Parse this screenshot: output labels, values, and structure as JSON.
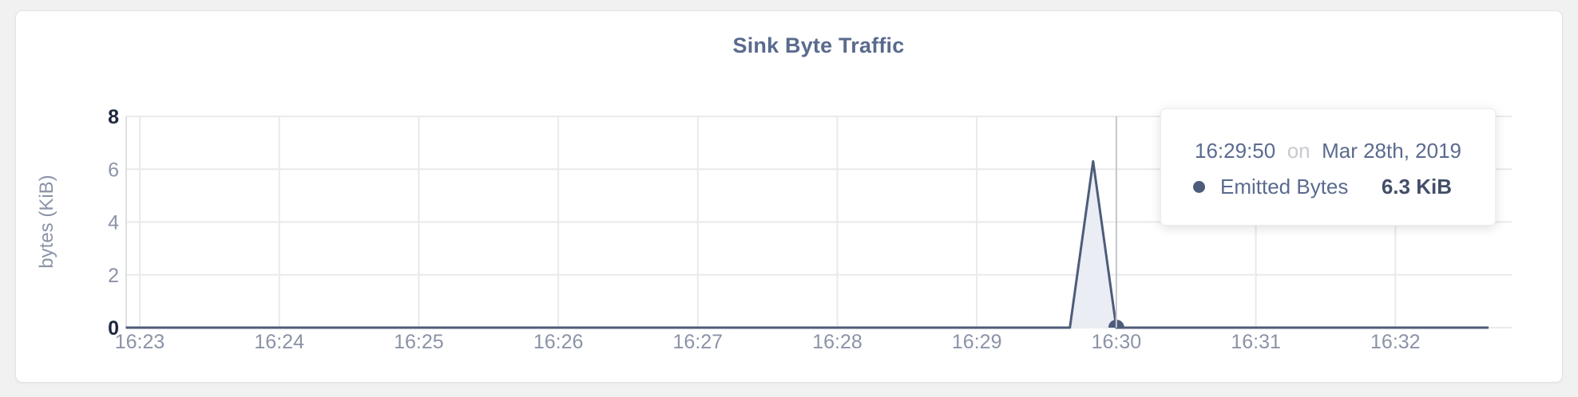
{
  "page": {
    "background": "#f1f1f2"
  },
  "card": {
    "background": "#ffffff",
    "border_color": "#e3e4e6"
  },
  "chart_data": {
    "type": "area",
    "title": "Sink Byte Traffic",
    "xlabel": "",
    "ylabel": "bytes (KiB)",
    "x_tick_labels": [
      "16:23",
      "16:24",
      "16:25",
      "16:26",
      "16:27",
      "16:28",
      "16:29",
      "16:30",
      "16:31",
      "16:32"
    ],
    "y_ticks": [
      0,
      2,
      4,
      6,
      8
    ],
    "y_tick_labels": [
      "0",
      "2",
      "4",
      "6",
      "8"
    ],
    "ylim": [
      0,
      8
    ],
    "grid": true,
    "legend_position": "none",
    "series": [
      {
        "name": "Emitted Bytes",
        "color": "#4d5c7a",
        "fill": "#ebedf4",
        "points": [
          [
            "16:22:54",
            0
          ],
          [
            "16:29:40",
            0
          ],
          [
            "16:29:50",
            6.3
          ],
          [
            "16:30:00",
            0
          ],
          [
            "16:32:40",
            0
          ]
        ]
      }
    ],
    "hover": {
      "guideline_time": "16:30:00",
      "point": {
        "t": "16:30:00",
        "v": 0
      }
    },
    "colors": {
      "gridline": "#e9eaec",
      "axis_line": "#dfe0e3",
      "tick_text": "#8b93a7",
      "tick_text_maxmin": "#20283f",
      "guideline": "#c6c8cd",
      "title_text": "#5a6a8e"
    }
  },
  "tooltip": {
    "time": "16:29:50",
    "conjunction": "on",
    "date": "Mar 28th, 2019",
    "series_label": "Emitted Bytes",
    "value": "6.3 KiB",
    "dot_color": "#4d5c7a"
  }
}
